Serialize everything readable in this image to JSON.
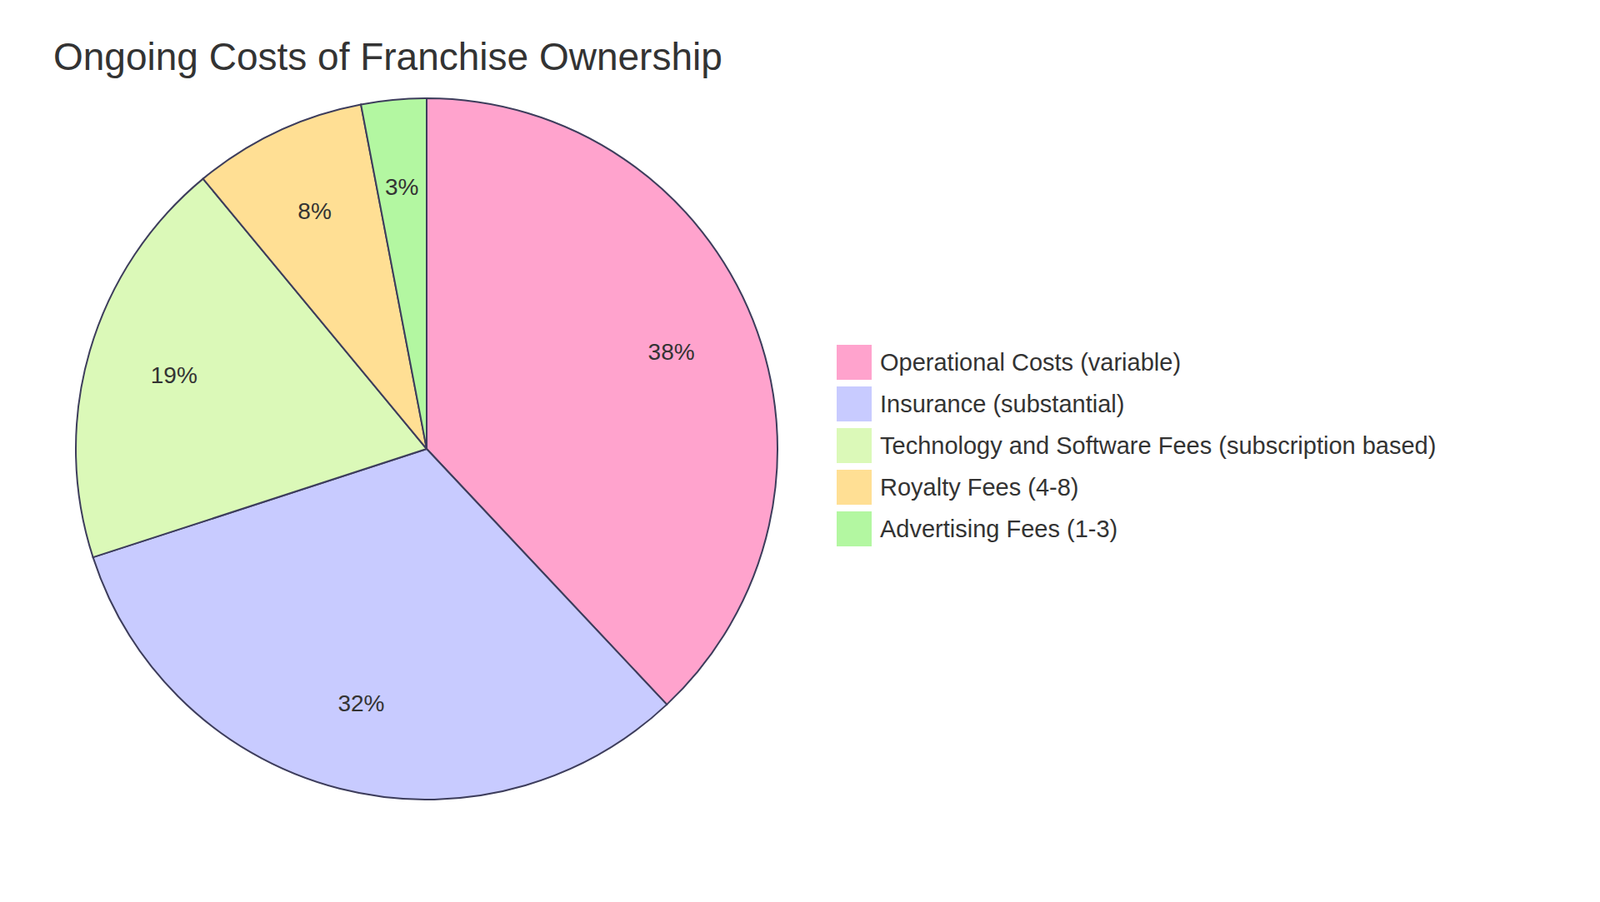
{
  "chart_data": {
    "type": "pie",
    "title": "Ongoing Costs of Franchise Ownership",
    "categories": [
      "Operational Costs (variable)",
      "Insurance (substantial)",
      "Technology and Software Fees (subscription based)",
      "Royalty Fees (4-8)",
      "Advertising Fees (1-3)"
    ],
    "values": [
      38,
      32,
      19,
      8,
      3
    ],
    "value_labels": [
      "38%",
      "32%",
      "19%",
      "8%",
      "3%"
    ],
    "colors": [
      "#ffa3cd",
      "#c8cbff",
      "#dbf9b8",
      "#ffdf94",
      "#b3f7a1"
    ],
    "data_labels": true,
    "legend": "right"
  }
}
